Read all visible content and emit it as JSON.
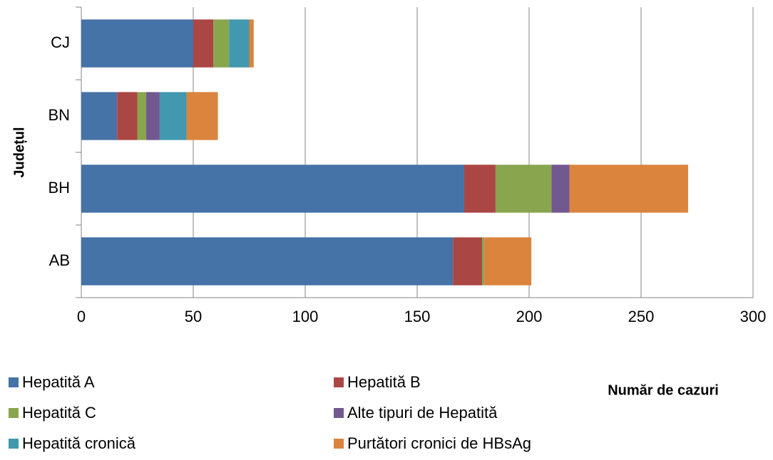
{
  "chart_data": {
    "type": "stacked-bar-horizontal",
    "x_label": "Număr de cazuri",
    "y_label": "Județul",
    "categories": [
      "AB",
      "BH",
      "BN",
      "CJ"
    ],
    "series": [
      {
        "name": "Hepatită A",
        "color": "#4572a7",
        "values": [
          166,
          171,
          16,
          50
        ]
      },
      {
        "name": "Hepatită B",
        "color": "#aa4643",
        "values": [
          13,
          14,
          9,
          9
        ]
      },
      {
        "name": "Hepatită C",
        "color": "#89a54e",
        "values": [
          1,
          25,
          4,
          7
        ]
      },
      {
        "name": "Alte tipuri de Hepatită",
        "color": "#71588f",
        "values": [
          0,
          8,
          6,
          0
        ]
      },
      {
        "name": "Hepatită cronică",
        "color": "#4198af",
        "values": [
          0,
          0,
          12,
          9
        ]
      },
      {
        "name": "Purtători cronici de HBsAg",
        "color": "#db843d",
        "values": [
          21,
          53,
          14,
          2
        ]
      }
    ],
    "xlim": [
      0,
      300
    ],
    "xticks": [
      0,
      50,
      100,
      150,
      200,
      250,
      300
    ],
    "grid": true
  }
}
